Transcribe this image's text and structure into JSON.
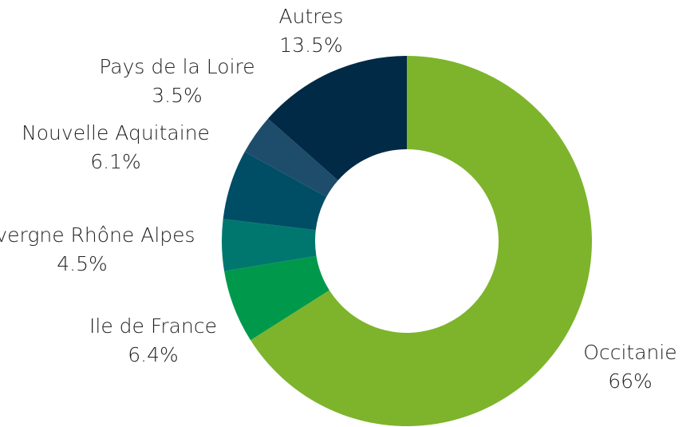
{
  "chart_data": {
    "type": "donut",
    "categories": [
      "Occitanie",
      "Ile de France",
      "Auvergne Rhône Alpes",
      "Nouvelle Aquitaine",
      "Pays de la Loire",
      "Autres"
    ],
    "values": [
      66,
      6.4,
      4.5,
      6.1,
      3.5,
      13.5
    ],
    "value_labels": [
      "66%",
      "6.4%",
      "4.5%",
      "6.1%",
      "3.5%",
      "13.5%"
    ],
    "colors": [
      "#7db42c",
      "#00994b",
      "#00776e",
      "#004d66",
      "#1e4d6b",
      "#002a45"
    ]
  }
}
